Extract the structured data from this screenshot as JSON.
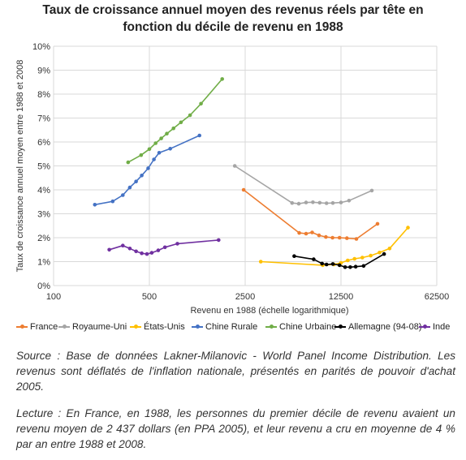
{
  "title_line1": "Taux de croissance annuel moyen des revenus réels par tête en",
  "title_line2": "fonction du décile de revenu en 1988",
  "source": "Source : Base de données Lakner-Milanovic - World Panel Income Distribution. Les revenus sont déflatés de l'inflation nationale,  présentés en parités de pouvoir d'achat 2005.",
  "lecture": "Lecture : En France, en 1988, les personnes du premier décile de revenu avaient un revenu moyen de 2 437 dollars (en PPA 2005), et leur revenu a cru en moyenne de 4 % par an entre 1988 et 2008.",
  "chart_data": {
    "type": "line",
    "xlabel": "Revenu en 1988 (échelle logarithmique)",
    "ylabel": "Taux de croissance annuel moyen entre 1988 et 2008",
    "xscale": "log",
    "xlim": [
      100,
      62500
    ],
    "ylim": [
      0,
      10
    ],
    "xticks": [
      100,
      500,
      2500,
      12500,
      62500
    ],
    "xtick_labels": [
      "100",
      "500",
      "2500",
      "12500",
      "62500"
    ],
    "yticks": [
      0,
      1,
      2,
      3,
      4,
      5,
      6,
      7,
      8,
      9,
      10
    ],
    "ytick_labels": [
      "0%",
      "1%",
      "2%",
      "3%",
      "4%",
      "5%",
      "6%",
      "7%",
      "8%",
      "9%",
      "10%"
    ],
    "grid": true,
    "legend_position": "bottom",
    "series": [
      {
        "name": "France",
        "color": "#ED7D31",
        "x": [
          2437,
          6200,
          6950,
          7700,
          8650,
          9700,
          10850,
          12200,
          13800,
          16200,
          23100
        ],
        "y": [
          4.0,
          2.2,
          2.17,
          2.22,
          2.1,
          2.03,
          2.0,
          2.0,
          1.98,
          1.95,
          2.58
        ]
      },
      {
        "name": "Royaume-Uni",
        "color": "#A5A5A5",
        "x": [
          2100,
          5500,
          6150,
          6950,
          7800,
          8750,
          9800,
          10900,
          12500,
          14300,
          21000
        ],
        "y": [
          5.0,
          3.45,
          3.42,
          3.47,
          3.48,
          3.46,
          3.44,
          3.45,
          3.47,
          3.55,
          3.97
        ]
      },
      {
        "name": "États-Unis",
        "color": "#FFC000",
        "x": [
          3250,
          9200,
          11100,
          12500,
          14000,
          15700,
          17900,
          20600,
          23900,
          28300,
          38500
        ],
        "y": [
          1.0,
          0.85,
          0.88,
          0.95,
          1.05,
          1.12,
          1.17,
          1.25,
          1.38,
          1.55,
          2.42
        ]
      },
      {
        "name": "Chine Rurale",
        "color": "#4472C4",
        "x": [
          200,
          270,
          320,
          360,
          400,
          440,
          490,
          540,
          590,
          710,
          1160
        ],
        "y": [
          3.38,
          3.52,
          3.78,
          4.1,
          4.35,
          4.6,
          4.9,
          5.27,
          5.55,
          5.72,
          6.27
        ]
      },
      {
        "name": "Chine Urbaine",
        "color": "#70AD47",
        "x": [
          350,
          435,
          500,
          555,
          610,
          670,
          750,
          850,
          990,
          1190,
          1700
        ],
        "y": [
          5.15,
          5.45,
          5.7,
          5.95,
          6.15,
          6.35,
          6.57,
          6.82,
          7.12,
          7.6,
          8.63
        ]
      },
      {
        "name": "Allemagne (94-08)",
        "color": "#000000",
        "x": [
          5700,
          7900,
          9100,
          9800,
          10900,
          12200,
          13400,
          14600,
          16000,
          18300,
          25800
        ],
        "y": [
          1.23,
          1.1,
          0.92,
          0.88,
          0.9,
          0.85,
          0.77,
          0.77,
          0.79,
          0.82,
          1.32
        ]
      },
      {
        "name": "Inde",
        "color": "#7030A0",
        "x": [
          255,
          320,
          360,
          400,
          440,
          480,
          520,
          580,
          650,
          800,
          1600
        ],
        "y": [
          1.5,
          1.67,
          1.55,
          1.43,
          1.35,
          1.32,
          1.37,
          1.47,
          1.6,
          1.75,
          1.9
        ]
      }
    ]
  }
}
